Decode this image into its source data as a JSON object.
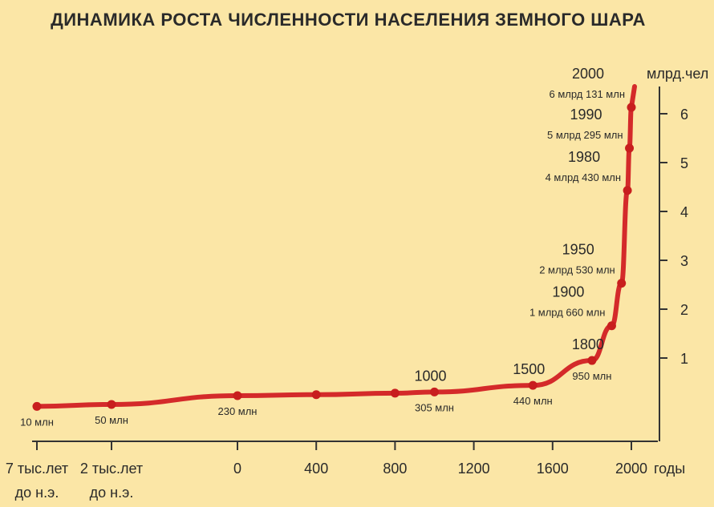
{
  "chart_data": {
    "type": "line",
    "title": "ДИНАМИКА РОСТА ЧИСЛЕННОСТИ НАСЕЛЕНИЯ ЗЕМНОГО ШАРА",
    "xlabel": "годы",
    "ylabel": "млрд.чел",
    "x_tick_labels": [
      {
        "x": -7000,
        "lines": [
          "7 тыс.лет",
          "до н.э."
        ]
      },
      {
        "x": -2000,
        "lines": [
          "2 тыс.лет",
          "до н.э."
        ]
      },
      {
        "x": 0,
        "lines": [
          "0"
        ]
      },
      {
        "x": 400,
        "lines": [
          "400"
        ]
      },
      {
        "x": 800,
        "lines": [
          "800"
        ]
      },
      {
        "x": 1200,
        "lines": [
          "1200"
        ]
      },
      {
        "x": 1600,
        "lines": [
          "1600"
        ]
      },
      {
        "x": 2000,
        "lines": [
          "2000"
        ]
      }
    ],
    "y_ticks": [
      1,
      2,
      3,
      4,
      5,
      6
    ],
    "ylim": [
      0,
      7
    ],
    "series": [
      {
        "x": [
          -7000,
          -2000,
          0,
          400,
          800,
          1000,
          1500,
          1800,
          1900,
          1950,
          1980,
          1990,
          2000
        ],
        "values": [
          0.01,
          0.05,
          0.23,
          0.25,
          0.28,
          0.305,
          0.44,
          0.95,
          1.66,
          2.53,
          4.43,
          5.295,
          6.131
        ]
      }
    ],
    "point_labels": [
      {
        "x": -7000,
        "pop": "10 млн"
      },
      {
        "x": -2000,
        "pop": "50 млн"
      },
      {
        "x": 0,
        "pop": "230 млн"
      },
      {
        "x": 1000,
        "year": "1000",
        "pop": "305 млн"
      },
      {
        "x": 1500,
        "year": "1500",
        "pop": "440 млн"
      },
      {
        "x": 1800,
        "year": "1800",
        "pop": "950 млн"
      },
      {
        "x": 1900,
        "year": "1900",
        "pop": "1 млрд 660 млн"
      },
      {
        "x": 1950,
        "year": "1950",
        "pop": "2 млрд 530 млн"
      },
      {
        "x": 1980,
        "year": "1980",
        "pop": "4 млрд 430 млн"
      },
      {
        "x": 1990,
        "year": "1990",
        "pop": "5 млрд 295 млн"
      },
      {
        "x": 2000,
        "year": "2000",
        "pop": "6 млрд 131 млн"
      }
    ],
    "colors": {
      "line": "#d42a2a",
      "background": "#fbe6a6"
    },
    "x_scale": "piecewise: BC segment compressed, AD segment linear"
  }
}
